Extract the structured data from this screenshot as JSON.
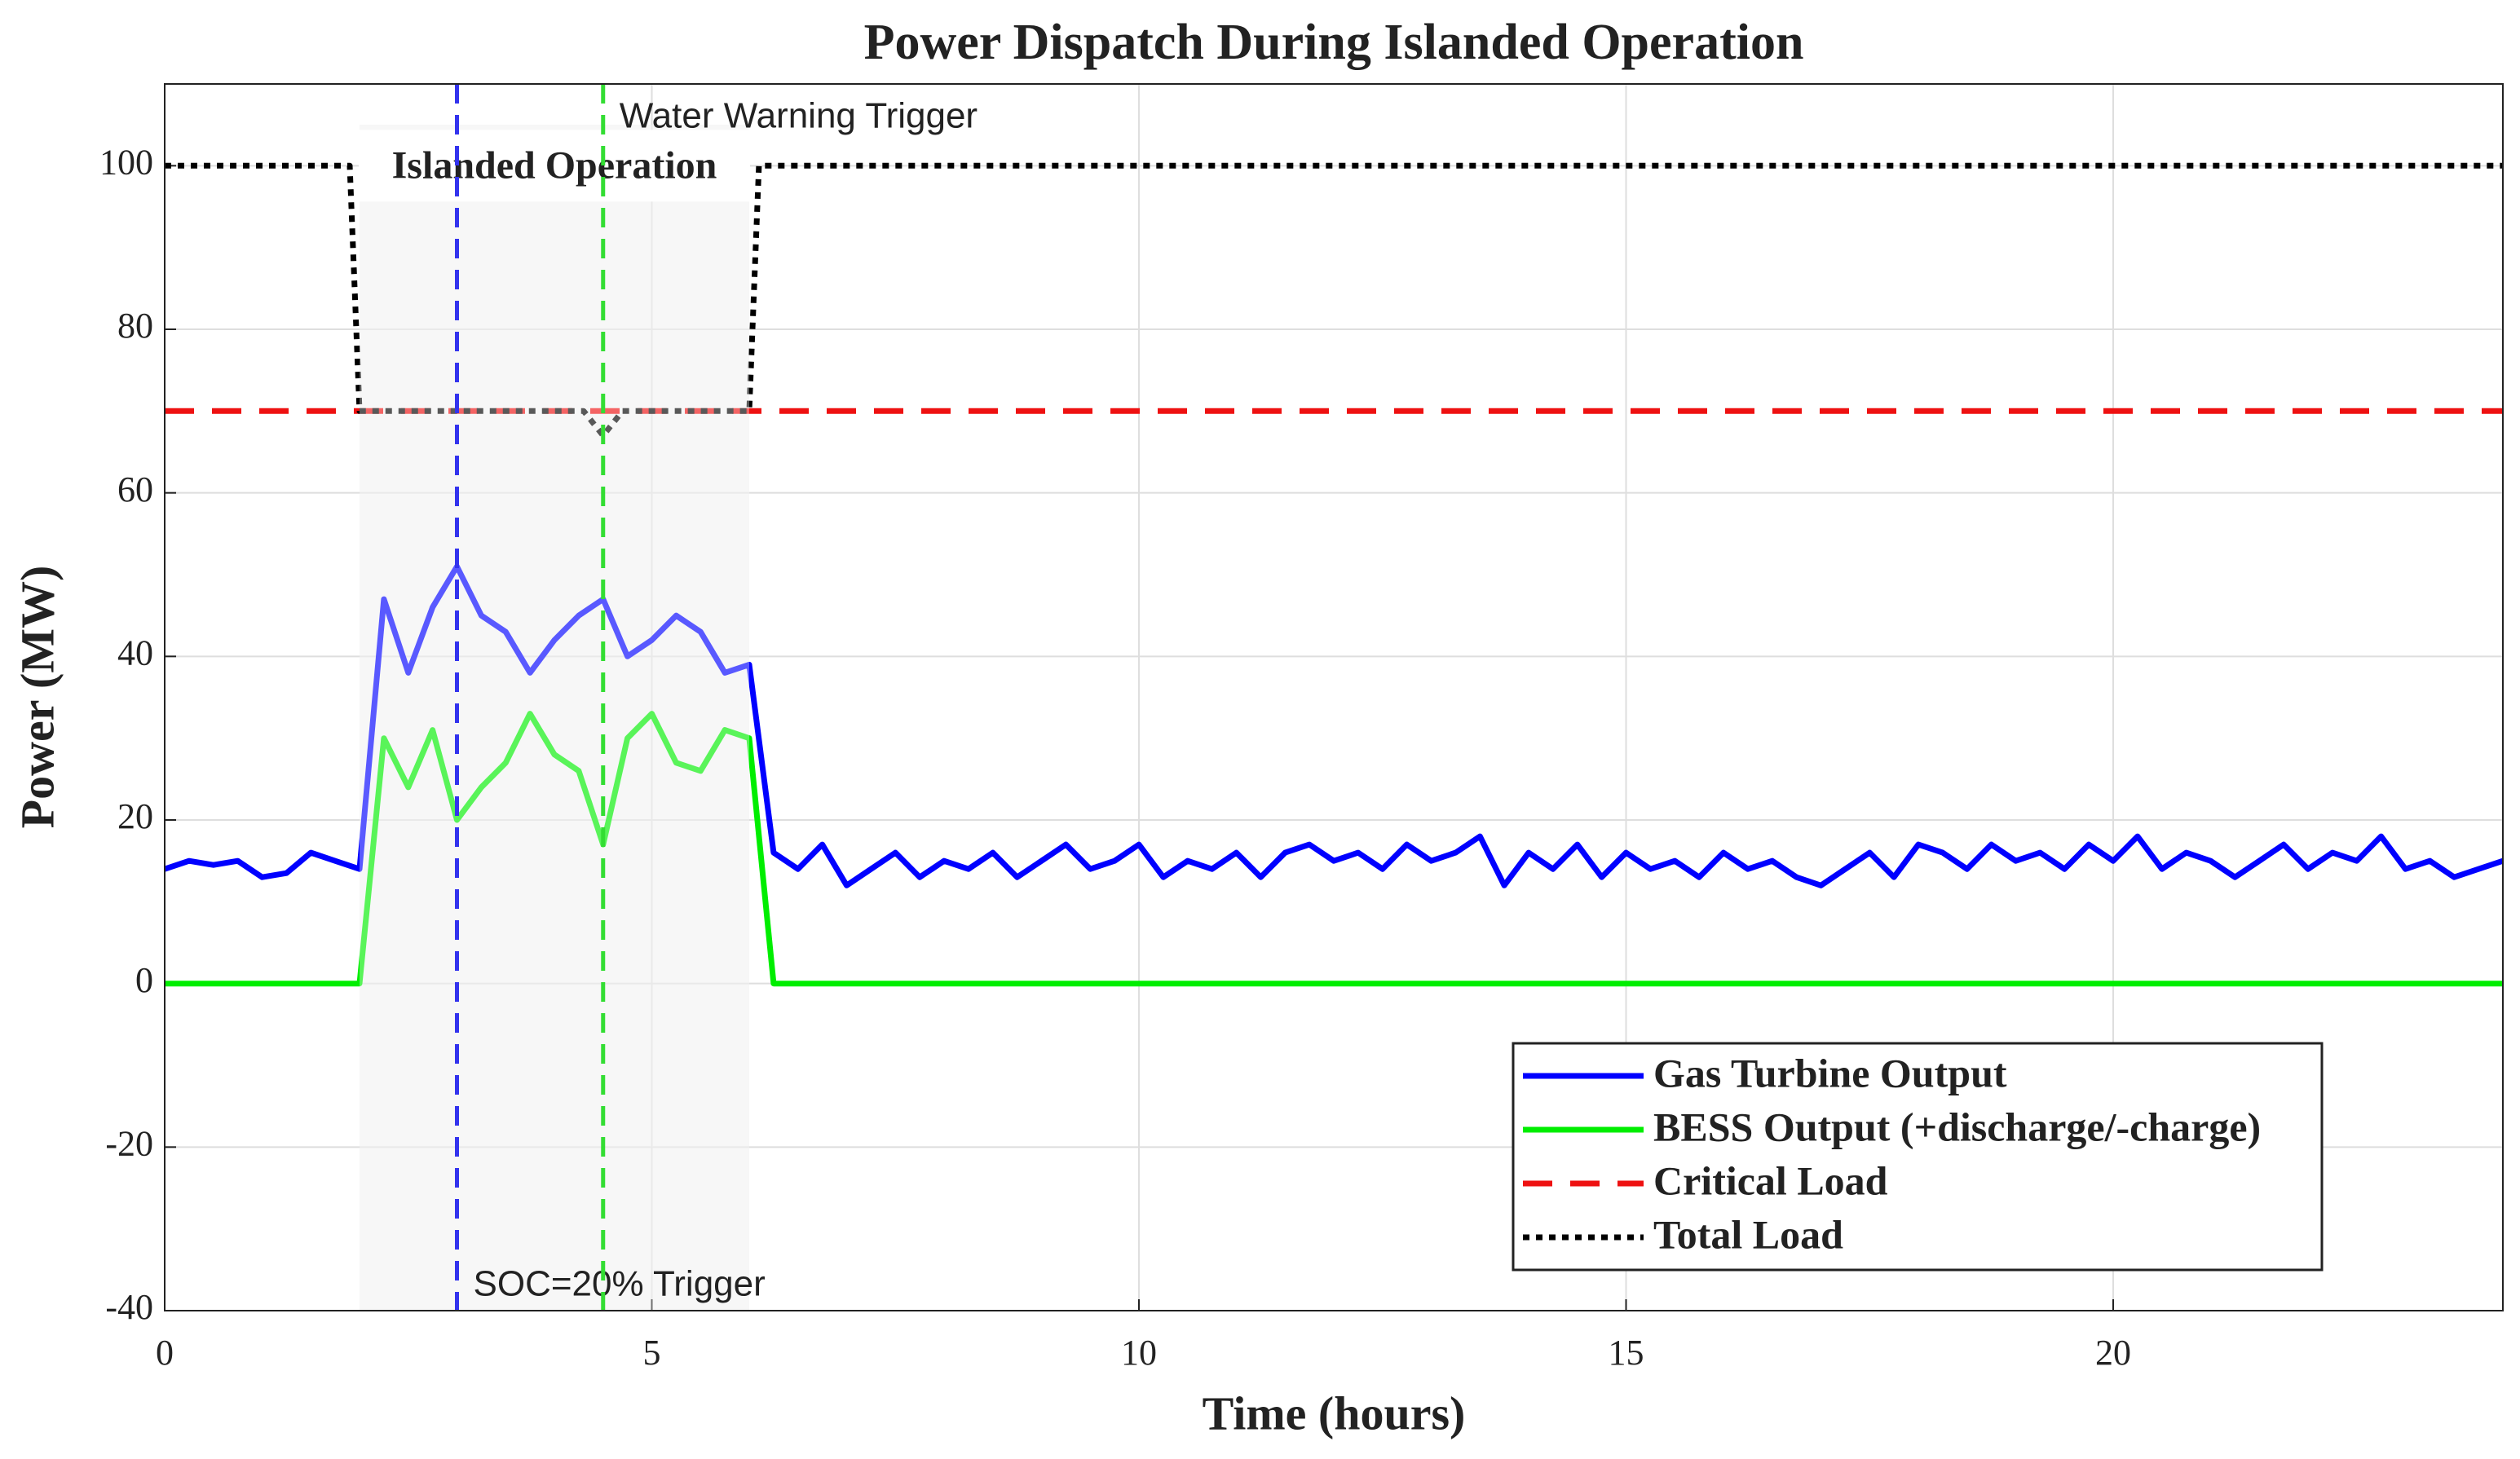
{
  "chart_data": {
    "type": "line",
    "title": "Power Dispatch During Islanded Operation",
    "xlabel": "Time (hours)",
    "ylabel": "Power (MW)",
    "xlim": [
      0,
      24
    ],
    "xticks": [
      0,
      5,
      10,
      15,
      20
    ],
    "ylim": [
      -40,
      110
    ],
    "yticks": [
      -40,
      -20,
      0,
      20,
      40,
      60,
      80,
      100
    ],
    "grid": true,
    "legend": "lower right",
    "series": [
      {
        "name": "Gas Turbine Output",
        "color": "#0000ff",
        "linestyle": "solid",
        "x": [
          0,
          0.25,
          0.5,
          0.75,
          1,
          1.25,
          1.5,
          1.75,
          2,
          2.25,
          2.5,
          2.75,
          3,
          3.25,
          3.5,
          3.75,
          4,
          4.25,
          4.5,
          4.75,
          5,
          5.25,
          5.5,
          5.75,
          6,
          6.25,
          6.5,
          6.75,
          7,
          7.25,
          7.5,
          7.75,
          8,
          8.25,
          8.5,
          8.75,
          9,
          9.25,
          9.5,
          9.75,
          10,
          10.25,
          10.5,
          10.75,
          11,
          11.25,
          11.5,
          11.75,
          12,
          12.25,
          12.5,
          12.75,
          13,
          13.25,
          13.5,
          13.75,
          14,
          14.25,
          14.5,
          14.75,
          15,
          15.25,
          15.5,
          15.75,
          16,
          16.25,
          16.5,
          16.75,
          17,
          17.25,
          17.5,
          17.75,
          18,
          18.25,
          18.5,
          18.75,
          19,
          19.25,
          19.5,
          19.75,
          20,
          20.25,
          20.5,
          20.75,
          21,
          21.25,
          21.5,
          21.75,
          22,
          22.25,
          22.5,
          22.75,
          23,
          23.25,
          23.5,
          23.75,
          24
        ],
        "values": [
          14,
          15,
          14.5,
          15,
          13,
          13.5,
          16,
          15,
          14,
          47,
          38,
          46,
          51,
          45,
          43,
          38,
          42,
          45,
          47,
          40,
          42,
          45,
          43,
          38,
          39,
          16,
          14,
          17,
          12,
          14,
          16,
          13,
          15,
          14,
          16,
          13,
          15,
          17,
          14,
          15,
          17,
          13,
          15,
          14,
          16,
          13,
          16,
          17,
          15,
          16,
          14,
          17,
          15,
          16,
          18,
          12,
          16,
          14,
          17,
          13,
          16,
          14,
          15,
          13,
          16,
          14,
          15,
          13,
          12,
          14,
          16,
          13,
          17,
          16,
          14,
          17,
          15,
          16,
          14,
          17,
          15,
          18,
          14,
          16,
          15,
          13,
          15,
          17,
          14,
          16,
          15,
          18,
          14,
          15,
          13,
          14,
          15
        ]
      },
      {
        "name": "BESS Output (+discharge/-charge)",
        "color": "#00ee00",
        "linestyle": "solid",
        "x": [
          0,
          0.25,
          0.5,
          0.75,
          1,
          1.25,
          1.5,
          1.75,
          2,
          2.25,
          2.5,
          2.75,
          3,
          3.25,
          3.5,
          3.75,
          4,
          4.25,
          4.5,
          4.75,
          5,
          5.25,
          5.5,
          5.75,
          6,
          6.25,
          6.5,
          6.75,
          7,
          7.25,
          7.5,
          7.75,
          8,
          8.25,
          8.5,
          8.75,
          9,
          9.25,
          9.5,
          9.75,
          10,
          10.25,
          10.5,
          10.75,
          11,
          11.25,
          11.5,
          11.75,
          12,
          12.25,
          12.5,
          12.75,
          13,
          13.25,
          13.5,
          13.75,
          14,
          14.25,
          14.5,
          14.75,
          15,
          15.25,
          15.5,
          15.75,
          16,
          16.25,
          16.5,
          16.75,
          17,
          17.25,
          17.5,
          17.75,
          18,
          18.25,
          18.5,
          18.75,
          19,
          19.25,
          19.5,
          19.75,
          20,
          20.25,
          20.5,
          20.75,
          21,
          21.25,
          21.5,
          21.75,
          22,
          22.25,
          22.5,
          22.75,
          23,
          23.25,
          23.5,
          23.75,
          24
        ],
        "values": [
          0,
          0,
          0,
          0,
          0,
          0,
          0,
          0,
          0,
          30,
          24,
          31,
          20,
          24,
          27,
          33,
          28,
          26,
          17,
          30,
          33,
          27,
          26,
          31,
          30,
          0,
          0,
          0,
          0,
          0,
          0,
          0,
          0,
          0,
          0,
          0,
          0,
          0,
          0,
          0,
          0,
          0,
          0,
          0,
          0,
          0,
          0,
          0,
          0,
          0,
          0,
          0,
          0,
          0,
          0,
          0,
          0,
          0,
          0,
          0,
          0,
          0,
          0,
          0,
          0,
          0,
          0,
          0,
          0,
          0,
          0,
          0,
          0,
          0,
          0,
          0,
          0,
          0,
          0,
          0,
          0,
          0,
          0,
          0,
          0,
          0,
          0,
          0,
          0,
          0,
          0,
          0,
          0,
          0,
          0,
          0,
          0
        ]
      },
      {
        "name": "Critical Load",
        "color": "#ee1111",
        "linestyle": "dashed",
        "x": [
          0,
          24
        ],
        "values": [
          70,
          70
        ]
      },
      {
        "name": "Total Load",
        "color": "#000000",
        "linestyle": "dotted",
        "x": [
          0,
          1.9,
          2,
          4.3,
          4.5,
          4.7,
          6,
          6.1,
          24
        ],
        "values": [
          100,
          100,
          70,
          70,
          67,
          70,
          70,
          100,
          100
        ]
      }
    ],
    "regions": [
      {
        "x": [
          2,
          6
        ],
        "label": "Islanded Operation"
      }
    ],
    "vlines": [
      {
        "x": 3,
        "label": "SOC=20% Trigger",
        "color": "#3333ee",
        "label_position": "bottom"
      },
      {
        "x": 4.5,
        "label": "Water Warning Trigger",
        "color": "#33dd33",
        "label_position": "top"
      }
    ]
  }
}
